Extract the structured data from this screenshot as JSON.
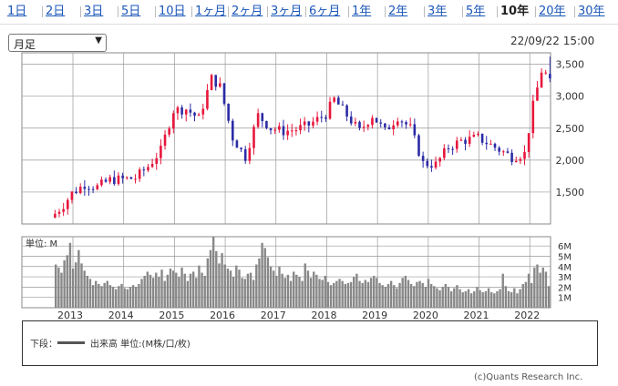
{
  "tabs": [
    "1日",
    "2日",
    "3日",
    "5日",
    "10日",
    "1ヶ月",
    "2ヶ月",
    "3ヶ月",
    "6ヶ月",
    "1年",
    "2年",
    "3年",
    "5年",
    "10年",
    "20年",
    "30年"
  ],
  "active_tab": "10年",
  "period_select": "月足",
  "timestamp": "22/09/22 15:00",
  "colors": {
    "up": "#e8173c",
    "down": "#2b2ba6",
    "volume": "#888888",
    "grid": "#999999"
  },
  "chart_data": [
    {
      "type": "candlestick",
      "xlabels": [
        "2013",
        "2014",
        "2015",
        "2016",
        "2017",
        "2018",
        "2019",
        "2020",
        "2021",
        "2022"
      ],
      "ytick_labels": [
        "1,500",
        "2,000",
        "2,500",
        "3,000",
        "3,500"
      ],
      "yticks": [
        1500,
        2000,
        2500,
        3000,
        3500
      ],
      "ylim": [
        1000,
        3680
      ],
      "trend_points": [
        [
          "2012-12",
          1160
        ],
        [
          "2013-02",
          1300
        ],
        [
          "2013-04",
          1480
        ],
        [
          "2013-07",
          1620
        ],
        [
          "2013-10",
          1580
        ],
        [
          "2014-01",
          1690
        ],
        [
          "2014-04",
          1700
        ],
        [
          "2014-07",
          1720
        ],
        [
          "2014-10",
          1900
        ],
        [
          "2015-01",
          2150
        ],
        [
          "2015-04",
          2780
        ],
        [
          "2015-07",
          2800
        ],
        [
          "2015-10",
          2650
        ],
        [
          "2016-01",
          3280
        ],
        [
          "2016-03",
          3150
        ],
        [
          "2016-06",
          2350
        ],
        [
          "2016-09",
          2050
        ],
        [
          "2016-12",
          2700
        ],
        [
          "2017-03",
          2500
        ],
        [
          "2017-06",
          2450
        ],
        [
          "2017-09",
          2480
        ],
        [
          "2017-12",
          2550
        ],
        [
          "2018-04",
          2720
        ],
        [
          "2018-06",
          2950
        ],
        [
          "2018-09",
          2700
        ],
        [
          "2018-12",
          2450
        ],
        [
          "2019-03",
          2700
        ],
        [
          "2019-06",
          2450
        ],
        [
          "2019-09",
          2680
        ],
        [
          "2019-12",
          2500
        ],
        [
          "2020-03",
          1950
        ],
        [
          "2020-06",
          1930
        ],
        [
          "2020-09",
          2200
        ],
        [
          "2020-12",
          2300
        ],
        [
          "2021-04",
          2350
        ],
        [
          "2021-08",
          2200
        ],
        [
          "2021-12",
          2050
        ],
        [
          "2022-03",
          2100
        ],
        [
          "2022-05",
          2850
        ],
        [
          "2022-07",
          3400
        ],
        [
          "2022-08",
          3350
        ],
        [
          "2022-09",
          3300
        ]
      ],
      "last_candle": {
        "date": "2022-09",
        "open": 3350,
        "high": 3620,
        "low": 3220,
        "close": 3280
      }
    },
    {
      "type": "bar",
      "title": "単位: M",
      "ytick_labels": [
        "1M",
        "2M",
        "3M",
        "4M",
        "5M",
        "6M"
      ],
      "yticks": [
        1,
        2,
        3,
        4,
        5,
        6
      ],
      "ylim": [
        0,
        6.9
      ],
      "volumes": [
        4.2,
        3.9,
        3.4,
        4.6,
        5.1,
        6.3,
        3.8,
        4.4,
        5.6,
        4.3,
        3.6,
        3.1,
        2.8,
        2.2,
        2.6,
        2.3,
        2.1,
        2.4,
        2.6,
        2.2,
        2.0,
        1.8,
        2.1,
        2.3,
        1.9,
        1.8,
        2.0,
        2.2,
        2.0,
        2.3,
        2.8,
        3.1,
        3.5,
        3.2,
        2.9,
        3.4,
        3.0,
        3.7,
        2.6,
        3.2,
        3.8,
        3.6,
        3.4,
        3.0,
        3.9,
        3.3,
        2.6,
        3.3,
        3.5,
        2.9,
        4.1,
        3.4,
        3.1,
        4.8,
        5.6,
        6.9,
        5.5,
        4.3,
        5.3,
        4.2,
        3.8,
        3.6,
        3.0,
        4.1,
        3.7,
        2.9,
        2.8,
        3.3,
        3.4,
        2.7,
        4.2,
        4.8,
        6.3,
        5.8,
        4.9,
        4.0,
        3.6,
        3.1,
        4.0,
        3.3,
        2.9,
        3.2,
        2.6,
        3.5,
        3.2,
        3.0,
        2.6,
        4.3,
        3.6,
        2.9,
        3.5,
        3.2,
        2.8,
        2.7,
        3.1,
        2.5,
        2.2,
        2.4,
        2.6,
        2.8,
        2.6,
        2.3,
        2.4,
        2.5,
        3.0,
        3.3,
        2.6,
        2.4,
        2.7,
        2.5,
        2.9,
        3.1,
        2.9,
        2.4,
        2.2,
        2.0,
        2.3,
        2.6,
        2.2,
        1.9,
        2.4,
        2.9,
        3.1,
        2.7,
        2.3,
        2.1,
        2.5,
        2.6,
        2.4,
        2.0,
        2.8,
        2.3,
        2.1,
        1.9,
        1.7,
        2.0,
        2.3,
        2.0,
        1.6,
        1.9,
        2.2,
        1.8,
        1.5,
        1.6,
        1.8,
        1.4,
        1.6,
        2.0,
        1.7,
        1.5,
        1.6,
        1.9,
        1.5,
        1.4,
        1.6,
        1.8,
        3.3,
        2.1,
        1.6,
        1.5,
        1.9,
        1.4,
        1.8,
        2.3,
        2.5,
        3.3,
        2.4,
        3.9,
        4.2,
        3.4,
        3.9,
        3.5,
        2.1
      ]
    }
  ],
  "legend": {
    "lower_label": "下段：",
    "volume_label": "出来高 単位:(M株/口/枚)"
  },
  "credit": "(c)Quants Research Inc."
}
